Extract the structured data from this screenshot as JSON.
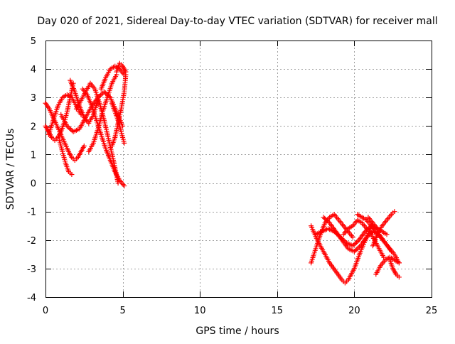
{
  "chart_data": {
    "type": "scatter",
    "title": "Day 020 of 2021, Sidereal Day-to-day VTEC variation (SDTVAR) for receiver mall",
    "xlabel": "GPS time / hours",
    "ylabel": "SDTVAR / TECUs",
    "xlim": [
      0,
      25
    ],
    "ylim": [
      -4,
      5
    ],
    "xticks": [
      0,
      5,
      10,
      15,
      20,
      25
    ],
    "yticks": [
      -4,
      -3,
      -2,
      -1,
      0,
      1,
      2,
      3,
      4,
      5
    ],
    "grid": true,
    "marker": "+",
    "color": "#ff0000",
    "series": [
      {
        "x": [
          0.0,
          0.25,
          0.5,
          0.75,
          1.0,
          1.25,
          1.5,
          1.7,
          1.9,
          2.1,
          2.3,
          2.5
        ],
        "y": [
          2.8,
          2.6,
          2.3,
          2.0,
          1.7,
          1.4,
          1.1,
          0.9,
          0.8,
          0.9,
          1.1,
          1.3
        ]
      },
      {
        "x": [
          0.0,
          0.2,
          0.4,
          0.6,
          0.8,
          1.0,
          1.2,
          1.4,
          1.6,
          1.8
        ],
        "y": [
          2.0,
          1.8,
          1.6,
          1.5,
          1.6,
          1.8,
          2.1,
          2.5,
          3.0,
          3.5
        ]
      },
      {
        "x": [
          0.2,
          0.5,
          0.8,
          1.1,
          1.4,
          1.7,
          2.0,
          2.3
        ],
        "y": [
          1.7,
          2.2,
          2.7,
          3.0,
          3.1,
          3.0,
          2.7,
          2.4
        ]
      },
      {
        "x": [
          0.9,
          1.1,
          1.3,
          1.5,
          1.7
        ],
        "y": [
          1.5,
          1.1,
          0.7,
          0.4,
          0.3
        ]
      },
      {
        "x": [
          1.0,
          1.4,
          1.8,
          2.2,
          2.6,
          3.0,
          3.4,
          3.8,
          4.2,
          4.6,
          5.0
        ],
        "y": [
          2.4,
          2.0,
          1.8,
          1.9,
          2.3,
          2.7,
          3.0,
          3.2,
          3.0,
          2.5,
          2.0
        ]
      },
      {
        "x": [
          1.6,
          1.9,
          2.2,
          2.5,
          2.8,
          3.1,
          3.4
        ],
        "y": [
          3.6,
          3.2,
          2.7,
          2.3,
          2.1,
          2.4,
          2.9
        ]
      },
      {
        "x": [
          2.0,
          2.3,
          2.6,
          2.9,
          3.2,
          3.5,
          3.8,
          4.1,
          4.4,
          4.7
        ],
        "y": [
          2.6,
          2.9,
          3.2,
          3.5,
          3.3,
          2.8,
          2.2,
          1.5,
          0.8,
          0.0
        ]
      },
      {
        "x": [
          2.4,
          2.7,
          3.0,
          3.3,
          3.6,
          3.9,
          4.2,
          4.5,
          4.8,
          5.1
        ],
        "y": [
          3.3,
          3.1,
          2.7,
          2.2,
          1.7,
          1.2,
          0.8,
          0.4,
          0.1,
          -0.1
        ]
      },
      {
        "x": [
          2.8,
          3.1,
          3.4,
          3.7,
          4.0,
          4.3,
          4.6
        ],
        "y": [
          1.1,
          1.4,
          1.9,
          2.5,
          3.0,
          3.5,
          3.8
        ]
      },
      {
        "x": [
          3.6,
          3.9,
          4.2,
          4.5,
          4.8,
          5.1
        ],
        "y": [
          3.3,
          3.7,
          4.0,
          4.1,
          4.0,
          3.8
        ]
      },
      {
        "x": [
          4.3,
          4.5,
          4.7,
          4.9,
          5.1,
          5.2
        ],
        "y": [
          1.3,
          1.6,
          2.1,
          2.6,
          3.2,
          3.8
        ]
      },
      {
        "x": [
          4.6,
          4.8,
          5.0,
          5.2
        ],
        "y": [
          3.9,
          4.2,
          4.1,
          3.9
        ]
      },
      {
        "x": [
          4.3,
          4.5,
          4.7,
          4.9,
          5.1
        ],
        "y": [
          2.8,
          2.5,
          2.2,
          1.8,
          1.4
        ]
      },
      {
        "x": [
          17.2,
          17.5,
          17.8,
          18.1,
          18.4,
          18.7,
          19.0,
          19.3,
          19.6,
          19.9
        ],
        "y": [
          -2.8,
          -2.3,
          -1.8,
          -1.4,
          -1.2,
          -1.1,
          -1.3,
          -1.5,
          -1.7,
          -1.9
        ]
      },
      {
        "x": [
          17.2,
          17.6,
          18.0,
          18.4,
          18.8,
          19.2,
          19.4,
          19.6,
          20.0,
          20.4,
          20.8,
          21.2
        ],
        "y": [
          -1.5,
          -2.0,
          -2.4,
          -2.8,
          -3.1,
          -3.4,
          -3.5,
          -3.4,
          -3.0,
          -2.4,
          -1.9,
          -1.4
        ]
      },
      {
        "x": [
          17.5,
          17.9,
          18.3,
          18.7,
          19.1,
          19.5,
          19.9,
          20.3,
          20.7,
          21.1,
          21.5
        ],
        "y": [
          -1.8,
          -1.7,
          -1.6,
          -1.7,
          -1.9,
          -2.1,
          -2.2,
          -2.0,
          -1.7,
          -1.5,
          -1.6
        ]
      },
      {
        "x": [
          18.0,
          18.4,
          18.8,
          19.2,
          19.6,
          20.0,
          20.4,
          20.8,
          21.2,
          21.6,
          22.0,
          22.4
        ],
        "y": [
          -1.2,
          -1.4,
          -1.7,
          -2.0,
          -2.3,
          -2.4,
          -2.2,
          -1.9,
          -1.7,
          -1.8,
          -2.1,
          -2.4
        ]
      },
      {
        "x": [
          19.3,
          19.6,
          19.9,
          20.2,
          20.5,
          20.8
        ],
        "y": [
          -1.8,
          -1.6,
          -1.5,
          -1.3,
          -1.4,
          -1.6
        ]
      },
      {
        "x": [
          20.2,
          20.5,
          20.8,
          21.1,
          21.4,
          21.7,
          22.0,
          22.3,
          22.6,
          22.9
        ],
        "y": [
          -1.1,
          -1.2,
          -1.3,
          -1.5,
          -1.7,
          -1.9,
          -2.1,
          -2.3,
          -2.5,
          -2.8
        ]
      },
      {
        "x": [
          21.2,
          21.5,
          21.8,
          22.1,
          22.4,
          22.6
        ],
        "y": [
          -2.2,
          -1.8,
          -1.5,
          -1.3,
          -1.1,
          -1.0
        ]
      },
      {
        "x": [
          21.4,
          21.7,
          22.0,
          22.3,
          22.6,
          22.9
        ],
        "y": [
          -3.2,
          -2.9,
          -2.7,
          -2.6,
          -2.7,
          -2.8
        ]
      },
      {
        "x": [
          22.3,
          22.5,
          22.7,
          22.9
        ],
        "y": [
          -2.7,
          -3.0,
          -3.2,
          -3.3
        ]
      },
      {
        "x": [
          21.0,
          21.3,
          21.6,
          21.9
        ],
        "y": [
          -1.7,
          -2.0,
          -2.3,
          -2.6
        ]
      },
      {
        "x": [
          20.9,
          21.2,
          21.5,
          21.8,
          22.1
        ],
        "y": [
          -1.2,
          -1.4,
          -1.6,
          -1.7,
          -1.8
        ]
      }
    ]
  }
}
